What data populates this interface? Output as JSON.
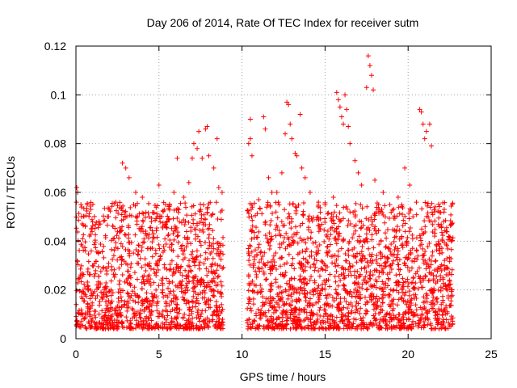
{
  "chart_data": {
    "type": "scatter",
    "title": "Day 206 of 2014, Rate Of TEC Index for receiver sutm",
    "xlabel": "GPS time / hours",
    "ylabel": "ROTI / TECUs",
    "xlim": [
      0,
      25
    ],
    "ylim": [
      0,
      0.12
    ],
    "x_ticks": [
      0,
      5,
      10,
      15,
      20,
      25
    ],
    "x_tick_labels": [
      "0",
      "5",
      "10",
      "15",
      "20",
      "25"
    ],
    "y_ticks": [
      0,
      0.02,
      0.04,
      0.06,
      0.08,
      0.1,
      0.12
    ],
    "y_tick_labels": [
      "0",
      "0.02",
      "0.04",
      "0.06",
      "0.08",
      "0.1",
      "0.12"
    ],
    "grid": true,
    "marker": "+",
    "color": "#ff0000",
    "data_gap_hours": [
      8.9,
      10.3
    ],
    "data_coverage_hours": [
      0,
      22.7
    ],
    "series": [
      {
        "name": "ROTI",
        "points": [
          [
            0.05,
            0.062
          ],
          [
            0.1,
            0.06
          ],
          [
            0.3,
            0.055
          ],
          [
            0.9,
            0.053
          ],
          [
            1.4,
            0.047
          ],
          [
            1.9,
            0.05
          ],
          [
            2.4,
            0.056
          ],
          [
            2.8,
            0.072
          ],
          [
            3.0,
            0.07
          ],
          [
            3.2,
            0.066
          ],
          [
            3.6,
            0.06
          ],
          [
            4.0,
            0.058
          ],
          [
            4.4,
            0.05
          ],
          [
            4.9,
            0.05
          ],
          [
            5.0,
            0.063
          ],
          [
            5.4,
            0.055
          ],
          [
            5.9,
            0.06
          ],
          [
            6.1,
            0.074
          ],
          [
            6.5,
            0.058
          ],
          [
            6.8,
            0.064
          ],
          [
            7.0,
            0.074
          ],
          [
            7.1,
            0.08
          ],
          [
            7.3,
            0.078
          ],
          [
            7.4,
            0.085
          ],
          [
            7.6,
            0.074
          ],
          [
            7.8,
            0.086
          ],
          [
            7.9,
            0.087
          ],
          [
            8.0,
            0.075
          ],
          [
            8.3,
            0.07
          ],
          [
            8.5,
            0.082
          ],
          [
            8.6,
            0.062
          ],
          [
            8.8,
            0.06
          ],
          [
            10.4,
            0.08
          ],
          [
            10.5,
            0.082
          ],
          [
            10.5,
            0.09
          ],
          [
            10.6,
            0.075
          ],
          [
            11.0,
            0.057
          ],
          [
            11.3,
            0.091
          ],
          [
            11.4,
            0.086
          ],
          [
            11.6,
            0.066
          ],
          [
            11.8,
            0.06
          ],
          [
            12.1,
            0.06
          ],
          [
            12.4,
            0.068
          ],
          [
            12.6,
            0.084
          ],
          [
            12.7,
            0.097
          ],
          [
            12.8,
            0.096
          ],
          [
            12.9,
            0.088
          ],
          [
            13.0,
            0.082
          ],
          [
            13.2,
            0.076
          ],
          [
            13.3,
            0.075
          ],
          [
            13.5,
            0.092
          ],
          [
            13.6,
            0.07
          ],
          [
            13.8,
            0.066
          ],
          [
            14.1,
            0.06
          ],
          [
            14.6,
            0.056
          ],
          [
            15.0,
            0.055
          ],
          [
            15.5,
            0.058
          ],
          [
            15.7,
            0.101
          ],
          [
            15.8,
            0.098
          ],
          [
            15.9,
            0.095
          ],
          [
            16.0,
            0.091
          ],
          [
            16.1,
            0.088
          ],
          [
            16.2,
            0.1
          ],
          [
            16.3,
            0.094
          ],
          [
            16.4,
            0.087
          ],
          [
            16.5,
            0.08
          ],
          [
            16.8,
            0.073
          ],
          [
            17.0,
            0.068
          ],
          [
            17.2,
            0.063
          ],
          [
            17.5,
            0.103
          ],
          [
            17.6,
            0.116
          ],
          [
            17.7,
            0.112
          ],
          [
            17.8,
            0.108
          ],
          [
            17.9,
            0.102
          ],
          [
            18.0,
            0.065
          ],
          [
            18.5,
            0.06
          ],
          [
            18.9,
            0.055
          ],
          [
            19.4,
            0.058
          ],
          [
            19.8,
            0.07
          ],
          [
            20.1,
            0.063
          ],
          [
            20.5,
            0.056
          ],
          [
            20.7,
            0.094
          ],
          [
            20.8,
            0.093
          ],
          [
            20.9,
            0.088
          ],
          [
            21.0,
            0.082
          ],
          [
            21.1,
            0.085
          ],
          [
            21.3,
            0.088
          ],
          [
            21.4,
            0.079
          ],
          [
            21.6,
            0.052
          ],
          [
            22.0,
            0.046
          ],
          [
            22.3,
            0.044
          ],
          [
            22.6,
            0.04
          ]
        ]
      }
    ]
  }
}
